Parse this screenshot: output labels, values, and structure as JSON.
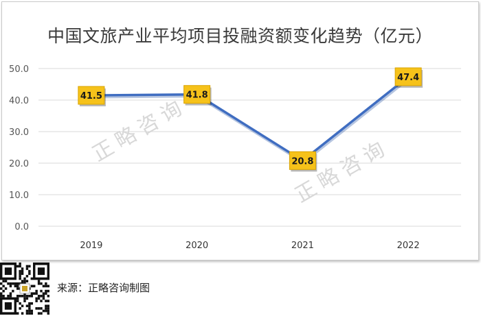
{
  "chart_data": {
    "type": "line",
    "title": "中国文旅产业平均项目投融资额变化趋势（亿元）",
    "categories": [
      "2019",
      "2020",
      "2021",
      "2022"
    ],
    "series": [
      {
        "values": [
          41.5,
          41.8,
          20.8,
          47.4
        ]
      }
    ],
    "data_labels": [
      "41.5",
      "41.8",
      "20.8",
      "47.4"
    ],
    "y_ticks": [
      "0.0",
      "10.0",
      "20.0",
      "30.0",
      "40.0",
      "50.0"
    ],
    "ylim": [
      0,
      50
    ],
    "grid": true,
    "legend": "none",
    "watermark": "正略咨询",
    "colors": {
      "line": "#3f6dc1",
      "label_fill": "#f6c21a",
      "grid": "#d9d9d9"
    }
  },
  "footer": {
    "source": "来源：正略咨询制图"
  }
}
